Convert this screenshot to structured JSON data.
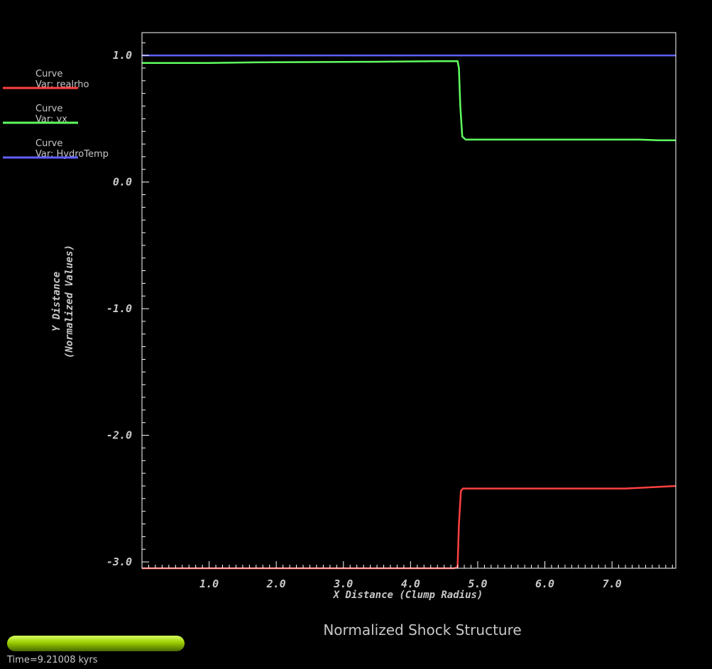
{
  "title": "Normalized Shock Structure",
  "time_label": "Time=9.21008 kyrs",
  "progress": 1.0,
  "colors": {
    "background": "#000000",
    "axis": "#ffffff",
    "text": "#c8c8c8",
    "progress": "#8fbf00"
  },
  "chart_data": {
    "type": "line",
    "xlabel": "X Distance (Clump Radius)",
    "ylabel_line1": "Y Distance",
    "ylabel_line2": "(Normalized Values)",
    "xlim": [
      0.0,
      7.95
    ],
    "ylim": [
      -3.05,
      1.18
    ],
    "xticks": [
      1.0,
      2.0,
      3.0,
      4.0,
      5.0,
      6.0,
      7.0
    ],
    "xtick_labels": [
      "1.0",
      "2.0",
      "3.0",
      "4.0",
      "5.0",
      "6.0",
      "7.0"
    ],
    "yticks": [
      1.0,
      0.0,
      -1.0,
      -2.0,
      -3.0
    ],
    "ytick_labels": [
      "1.0",
      "0.0",
      "-1.0",
      "-2.0",
      "-3.0"
    ],
    "grid": false,
    "legend_position": "top-left outside",
    "series": [
      {
        "name": "Curve",
        "var": "Var: realrho",
        "color": "#ff4040",
        "points": [
          [
            0.0,
            -3.05
          ],
          [
            1.5,
            -3.05
          ],
          [
            3.0,
            -3.05
          ],
          [
            4.65,
            -3.05
          ],
          [
            4.7,
            -3.04
          ],
          [
            4.72,
            -2.7
          ],
          [
            4.75,
            -2.44
          ],
          [
            4.78,
            -2.42
          ],
          [
            5.5,
            -2.42
          ],
          [
            6.5,
            -2.42
          ],
          [
            7.2,
            -2.42
          ],
          [
            7.6,
            -2.41
          ],
          [
            7.95,
            -2.4
          ]
        ]
      },
      {
        "name": "Curve",
        "var": "Var: vx",
        "color": "#60ff60",
        "points": [
          [
            0.0,
            0.94
          ],
          [
            1.0,
            0.94
          ],
          [
            1.7,
            0.945
          ],
          [
            3.4,
            0.95
          ],
          [
            4.4,
            0.955
          ],
          [
            4.7,
            0.955
          ],
          [
            4.72,
            0.9
          ],
          [
            4.74,
            0.6
          ],
          [
            4.77,
            0.36
          ],
          [
            4.82,
            0.335
          ],
          [
            5.5,
            0.335
          ],
          [
            6.5,
            0.335
          ],
          [
            7.4,
            0.335
          ],
          [
            7.7,
            0.33
          ],
          [
            7.95,
            0.33
          ]
        ]
      },
      {
        "name": "Curve",
        "var": "Var: HydroTemp",
        "color": "#6060ff",
        "points": [
          [
            0.0,
            1.0
          ],
          [
            7.95,
            1.0
          ]
        ]
      }
    ]
  }
}
